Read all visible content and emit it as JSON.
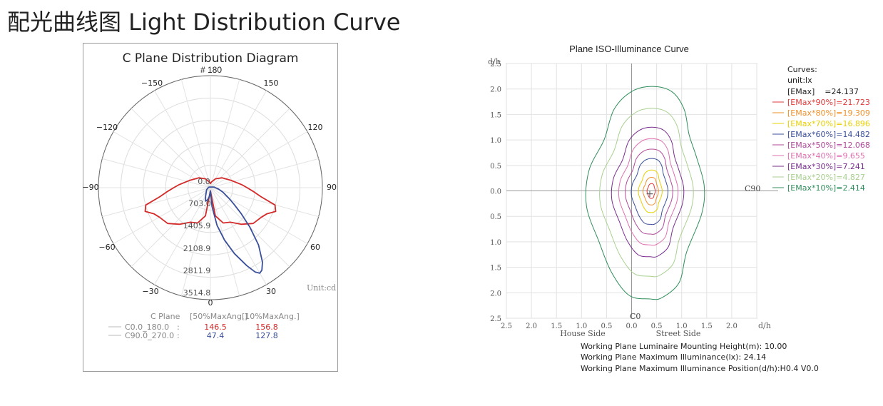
{
  "page_title": "配光曲线图 Light Distribution Curve",
  "chart_data": [
    {
      "type": "polar",
      "title": "C Plane Distribution Diagram",
      "angle_labels": {
        "top": "# 180",
        "p150": "150",
        "m150": "−150",
        "p120": "120",
        "m120": "−120",
        "p90": "90",
        "m90": "−90",
        "p60": "60",
        "m60": "−60",
        "p30": "30",
        "m30": "−30",
        "bottom": "0"
      },
      "radial_labels": [
        "0.0",
        "703.0",
        "1405.9",
        "2108.9",
        "2811.9",
        "3514.8"
      ],
      "radial_max": 3514.8,
      "unit": "Unit:cd",
      "colors": {
        "c0_180": "#d42a2a",
        "c90_270": "#3a4f9a"
      },
      "series": [
        {
          "name": "C0.0_180.0",
          "points": [
            [
              0,
              100
            ],
            [
              10,
              900
            ],
            [
              20,
              1180
            ],
            [
              30,
              1250
            ],
            [
              40,
              1500
            ],
            [
              50,
              1750
            ],
            [
              60,
              1850
            ],
            [
              65,
              1950
            ],
            [
              70,
              2180
            ],
            [
              75,
              2100
            ],
            [
              80,
              1600
            ],
            [
              85,
              1350
            ],
            [
              90,
              1150
            ],
            [
              95,
              1000
            ],
            [
              100,
              860
            ],
            [
              110,
              680
            ],
            [
              130,
              480
            ],
            [
              150,
              320
            ],
            [
              170,
              180
            ],
            [
              180,
              130
            ],
            [
              -180,
              130
            ],
            [
              -170,
              180
            ],
            [
              -150,
              320
            ],
            [
              -130,
              480
            ],
            [
              -110,
              680
            ],
            [
              -100,
              860
            ],
            [
              -95,
              1000
            ],
            [
              -90,
              1150
            ],
            [
              -85,
              1350
            ],
            [
              -80,
              1600
            ],
            [
              -75,
              2100
            ],
            [
              -70,
              2180
            ],
            [
              -65,
              1950
            ],
            [
              -60,
              1850
            ],
            [
              -50,
              1750
            ],
            [
              -40,
              1500
            ],
            [
              -30,
              1250
            ],
            [
              -20,
              1180
            ],
            [
              -10,
              900
            ]
          ]
        },
        {
          "name": "C90.0_270.0",
          "points": [
            [
              0,
              100
            ],
            [
              5,
              600
            ],
            [
              10,
              1200
            ],
            [
              15,
              1700
            ],
            [
              20,
              2200
            ],
            [
              25,
              2700
            ],
            [
              28,
              3000
            ],
            [
              30,
              3100
            ],
            [
              32,
              3050
            ],
            [
              35,
              2850
            ],
            [
              40,
              2350
            ],
            [
              45,
              1750
            ],
            [
              50,
              1250
            ],
            [
              55,
              900
            ],
            [
              60,
              680
            ],
            [
              70,
              420
            ],
            [
              80,
              260
            ],
            [
              100,
              110
            ],
            [
              140,
              25
            ],
            [
              180,
              15
            ],
            [
              -180,
              15
            ],
            [
              -140,
              25
            ],
            [
              -100,
              60
            ],
            [
              -60,
              140
            ],
            [
              -30,
              300
            ],
            [
              -20,
              450
            ],
            [
              -12,
              380
            ],
            [
              -6,
              260
            ]
          ]
        }
      ],
      "table": {
        "header": [
          "C Plane",
          "[50%MaxAng.]",
          "[10%MaxAng.]"
        ],
        "rows": [
          {
            "name": "C0.0_180.0",
            "sep": ":",
            "v50": "146.5",
            "v10": "156.8"
          },
          {
            "name": "C90.0_270.0",
            "sep": ":",
            "v50": "47.4",
            "v10": "127.8"
          }
        ]
      }
    },
    {
      "type": "contour",
      "title": "Plane ISO-Illuminance Curve",
      "xlabel": "d/h",
      "ylabel": "d/h",
      "xlim": [
        -2.5,
        2.5
      ],
      "ylim": [
        -2.5,
        2.5
      ],
      "x_ticks": [
        "2.5",
        "2.0",
        "1.5",
        "1.0",
        "0.5",
        "0.0",
        "0.5",
        "1.0",
        "1.5",
        "2.0"
      ],
      "y_ticks": [
        "2.5",
        "2.0",
        "1.5",
        "1.0",
        "0.5",
        "0.0",
        "0.5",
        "1.0",
        "1.5",
        "2.0",
        "2.5"
      ],
      "x_side_labels": [
        "House Side",
        "Street Side"
      ],
      "c0_label": "C0",
      "c90_label": "C90",
      "center_label": "+",
      "legend": {
        "header": [
          "Curves:",
          "unit:lx"
        ],
        "emax": "[EMax]    =24.137",
        "entries": [
          {
            "label": "[EMax*90%]=21.723",
            "color": "#e03a3a",
            "scale": 0.07
          },
          {
            "label": "[EMax*80%]=19.309",
            "color": "#f0902a",
            "scale": 0.13
          },
          {
            "label": "[EMax*70%]=16.896",
            "color": "#e8d000",
            "scale": 0.2
          },
          {
            "label": "[EMax*60%]=14.482",
            "color": "#3a4f9a",
            "scale": 0.31
          },
          {
            "label": "[EMax*50%]=12.068",
            "color": "#b04a9a",
            "scale": 0.4
          },
          {
            "label": "[EMax*40%]=9.655",
            "color": "#e070b0",
            "scale": 0.5
          },
          {
            "label": "[EMax*30%]=7.241",
            "color": "#7a2f8e",
            "scale": 0.61
          },
          {
            "label": "[EMax*20%]=4.827",
            "color": "#a8d090",
            "scale": 0.79
          },
          {
            "label": "[EMax*10%]=2.414",
            "color": "#2f8f5a",
            "scale": 1.0
          }
        ]
      },
      "center": [
        0.4,
        0.0
      ],
      "outer_contour_dh": [
        [
          0.4,
          2.05
        ],
        [
          0.8,
          1.95
        ],
        [
          1.05,
          1.6
        ],
        [
          1.15,
          1.1
        ],
        [
          1.3,
          0.65
        ],
        [
          1.45,
          0.1
        ],
        [
          1.4,
          -0.45
        ],
        [
          1.1,
          -1.2
        ],
        [
          0.95,
          -1.8
        ],
        [
          0.6,
          -2.1
        ],
        [
          0.35,
          -2.12
        ],
        [
          -0.05,
          -2.05
        ],
        [
          -0.4,
          -1.6
        ],
        [
          -0.65,
          -1.0
        ],
        [
          -0.9,
          -0.3
        ],
        [
          -0.85,
          0.4
        ],
        [
          -0.55,
          1.0
        ],
        [
          -0.35,
          1.6
        ],
        [
          0.0,
          1.95
        ]
      ],
      "info": [
        "Working Plane Luminaire Mounting Height(m): 10.00",
        "Working Plane Maximum Illuminance(lx): 24.14",
        "Working Plane Maximum Illuminance Position(d/h):H0.4 V0.0"
      ]
    }
  ]
}
